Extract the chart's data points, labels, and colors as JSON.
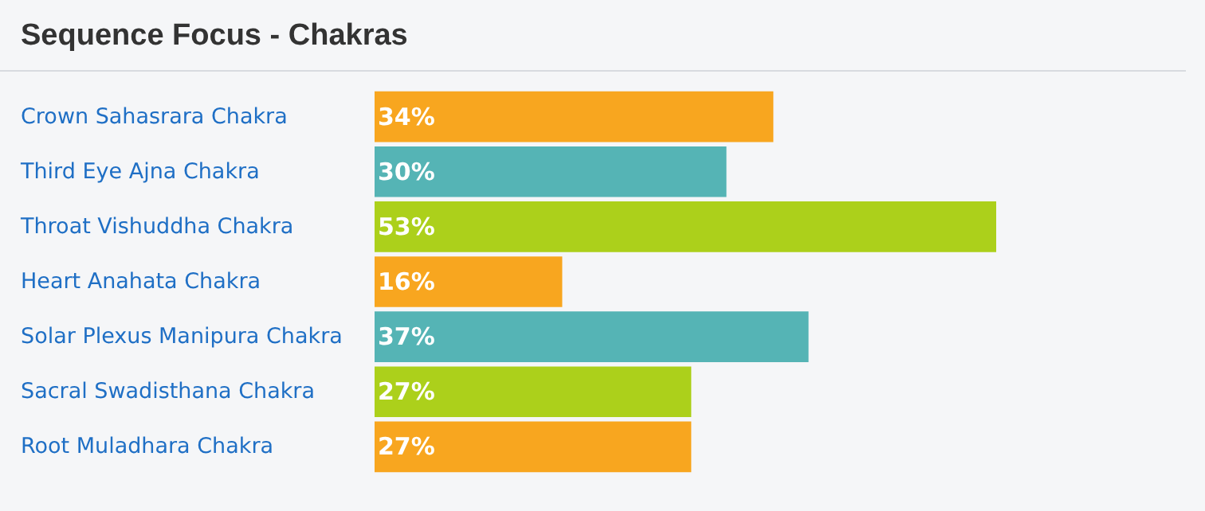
{
  "chart_data": {
    "type": "bar",
    "title": "Sequence Focus - Chakras",
    "orientation": "horizontal",
    "categories": [
      "Crown Sahasrara Chakra",
      "Third Eye Ajna Chakra",
      "Throat Vishuddha Chakra",
      "Heart Anahata Chakra",
      "Solar Plexus Manipura Chakra",
      "Sacral Swadisthana Chakra",
      "Root Muladhara Chakra"
    ],
    "values": [
      34,
      30,
      53,
      16,
      37,
      27,
      27
    ],
    "value_labels": [
      "34%",
      "30%",
      "53%",
      "16%",
      "37%",
      "27%",
      "27%"
    ],
    "colors": [
      "#f8a61f",
      "#55b4b5",
      "#acd01b",
      "#f8a61f",
      "#55b4b5",
      "#acd01b",
      "#f8a61f"
    ]
  }
}
